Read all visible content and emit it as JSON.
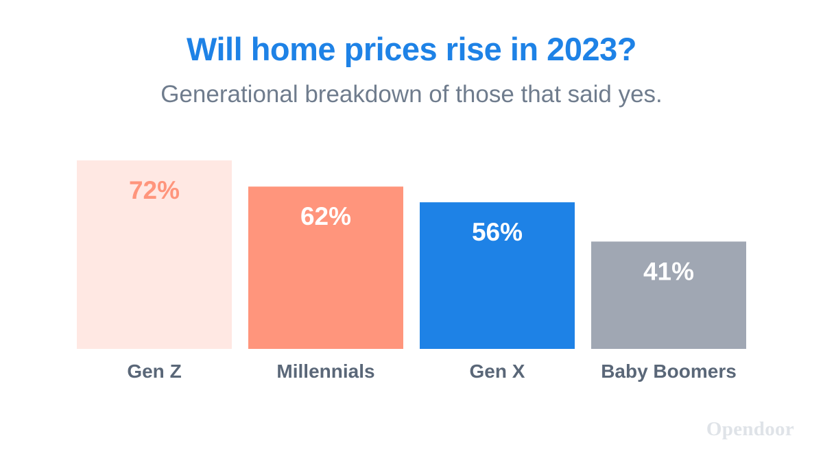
{
  "chart_data": {
    "type": "bar",
    "title": "Will home prices rise in 2023?",
    "subtitle": "Generational breakdown of those that said yes.",
    "categories": [
      "Gen Z",
      "Millennials",
      "Gen X",
      "Baby Boomers"
    ],
    "values": [
      72,
      62,
      56,
      41
    ],
    "data_labels": [
      "72%",
      "62%",
      "56%",
      "41%"
    ],
    "bar_colors": [
      "#ffe8e3",
      "#ff957c",
      "#1e82e6",
      "#a0a7b3"
    ],
    "label_colors": [
      "#ff957c",
      "#ffffff",
      "#ffffff",
      "#ffffff"
    ],
    "ylim": [
      0,
      72
    ],
    "grid": false,
    "legend": "none"
  },
  "colors": {
    "title": "#1e82e6",
    "category_label": "#5a6778",
    "subtitle": "#6f7c8d"
  },
  "brand": "Opendoor"
}
